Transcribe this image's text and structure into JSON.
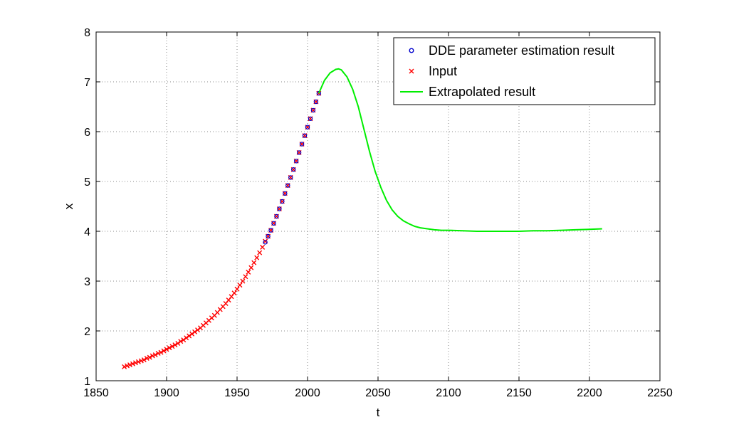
{
  "chart_data": {
    "type": "line",
    "title": "",
    "xlabel": "t",
    "ylabel": "x",
    "xlim": [
      1850,
      2250
    ],
    "ylim": [
      1,
      8
    ],
    "xticks": [
      1850,
      1900,
      1950,
      2000,
      2050,
      2100,
      2150,
      2200,
      2250
    ],
    "yticks": [
      1,
      2,
      3,
      4,
      5,
      6,
      7,
      8
    ],
    "grid": true,
    "legend_position": "top-right",
    "series": [
      {
        "name": "DDE parameter estimation result",
        "marker": "circle",
        "color": "#0000cc",
        "x": [
          1970,
          1972,
          1974,
          1976,
          1978,
          1980,
          1982,
          1984,
          1986,
          1988,
          1990,
          1992,
          1994,
          1996,
          1998,
          2000,
          2002,
          2004,
          2006,
          2008
        ],
        "y": [
          3.78,
          3.9,
          4.02,
          4.16,
          4.3,
          4.45,
          4.6,
          4.76,
          4.92,
          5.08,
          5.24,
          5.41,
          5.58,
          5.75,
          5.92,
          6.09,
          6.26,
          6.43,
          6.6,
          6.77
        ]
      },
      {
        "name": "Input",
        "marker": "x",
        "color": "#ff0000",
        "x": [
          1870,
          1872,
          1874,
          1876,
          1878,
          1880,
          1882,
          1884,
          1886,
          1888,
          1890,
          1892,
          1894,
          1896,
          1898,
          1900,
          1902,
          1904,
          1906,
          1908,
          1910,
          1912,
          1914,
          1916,
          1918,
          1920,
          1922,
          1924,
          1926,
          1928,
          1930,
          1932,
          1934,
          1936,
          1938,
          1940,
          1942,
          1944,
          1946,
          1948,
          1950,
          1952,
          1954,
          1956,
          1958,
          1960,
          1962,
          1964,
          1966,
          1968,
          1970,
          1972,
          1974,
          1976,
          1978,
          1980,
          1982,
          1984,
          1986,
          1988,
          1990,
          1992,
          1994,
          1996,
          1998,
          2000,
          2002,
          2004,
          2006,
          2008
        ],
        "y": [
          1.28,
          1.3,
          1.32,
          1.34,
          1.36,
          1.38,
          1.4,
          1.42,
          1.45,
          1.47,
          1.5,
          1.52,
          1.55,
          1.57,
          1.6,
          1.63,
          1.66,
          1.69,
          1.72,
          1.75,
          1.79,
          1.82,
          1.86,
          1.9,
          1.94,
          1.98,
          2.02,
          2.06,
          2.11,
          2.16,
          2.21,
          2.26,
          2.31,
          2.37,
          2.43,
          2.49,
          2.55,
          2.62,
          2.69,
          2.76,
          2.84,
          2.92,
          3.0,
          3.09,
          3.18,
          3.27,
          3.37,
          3.47,
          3.57,
          3.68,
          3.8,
          3.9,
          4.02,
          4.16,
          4.3,
          4.45,
          4.6,
          4.76,
          4.92,
          5.08,
          5.24,
          5.41,
          5.58,
          5.75,
          5.92,
          6.09,
          6.26,
          6.43,
          6.6,
          6.77
        ]
      },
      {
        "name": "Extrapolated result",
        "marker": "none",
        "color": "#00ee00",
        "x": [
          2008,
          2012,
          2016,
          2020,
          2022,
          2024,
          2028,
          2032,
          2036,
          2040,
          2044,
          2048,
          2052,
          2056,
          2060,
          2064,
          2068,
          2072,
          2076,
          2080,
          2085,
          2090,
          2095,
          2100,
          2110,
          2120,
          2130,
          2140,
          2150,
          2160,
          2170,
          2180,
          2190,
          2200,
          2209
        ],
        "y": [
          6.77,
          7.03,
          7.18,
          7.25,
          7.26,
          7.24,
          7.1,
          6.85,
          6.5,
          6.05,
          5.6,
          5.2,
          4.88,
          4.62,
          4.43,
          4.3,
          4.21,
          4.15,
          4.1,
          4.07,
          4.05,
          4.03,
          4.02,
          4.02,
          4.01,
          4.0,
          4.0,
          4.0,
          4.0,
          4.01,
          4.01,
          4.02,
          4.03,
          4.04,
          4.05
        ]
      }
    ]
  }
}
